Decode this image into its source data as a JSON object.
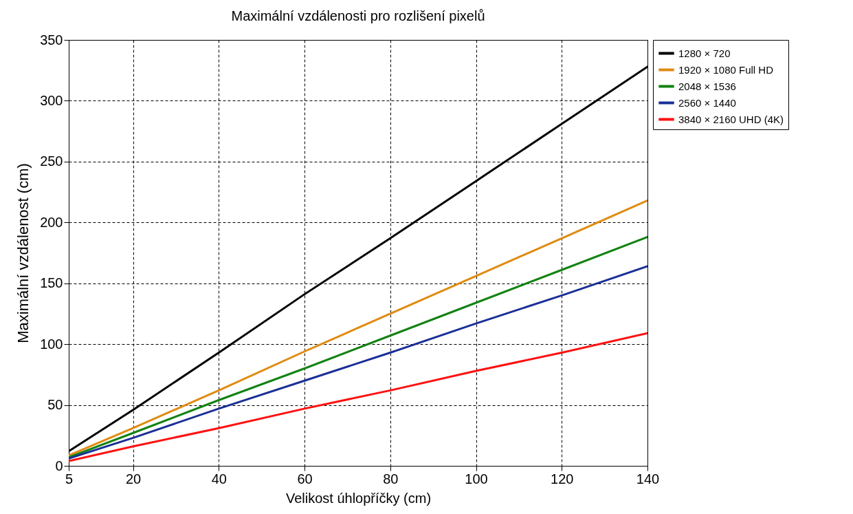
{
  "chart_data": {
    "type": "line",
    "title": "Maximální vzdálenosti pro rozlišení pixelů",
    "xlabel": "Velikost úhlopříčky (cm)",
    "ylabel": "Maximální  vzdálenost (cm)",
    "x": [
      5,
      20,
      40,
      60,
      80,
      100,
      120,
      140
    ],
    "series": [
      {
        "name": "1280 × 720",
        "color": "#000000",
        "values": [
          12,
          46,
          93,
          141,
          187,
          234,
          281,
          328
        ]
      },
      {
        "name": "1920 × 1080 Full HD",
        "color": "#e08a10",
        "values": [
          8.5,
          31,
          62,
          94,
          125,
          156,
          187,
          218
        ]
      },
      {
        "name": "2048 × 1536",
        "color": "#128212",
        "values": [
          7,
          27,
          54,
          80,
          107,
          134,
          161,
          188
        ]
      },
      {
        "name": "2560 × 1440",
        "color": "#1a2f96",
        "values": [
          6,
          23,
          47,
          70,
          93,
          117,
          140,
          164
        ]
      },
      {
        "name": "3840 × 2160 UHD (4K)",
        "color": "#ff1010",
        "values": [
          4,
          16,
          31,
          47,
          62,
          78,
          93,
          109
        ]
      }
    ],
    "xlim": [
      5,
      140
    ],
    "xticks": [
      5,
      20,
      40,
      60,
      80,
      100,
      120,
      140
    ],
    "ylim": [
      0,
      350
    ],
    "yticks": [
      0,
      50,
      100,
      150,
      200,
      250,
      300,
      350
    ],
    "grid": true,
    "legend": "top right",
    "marker": "none",
    "line_style": "solid"
  }
}
